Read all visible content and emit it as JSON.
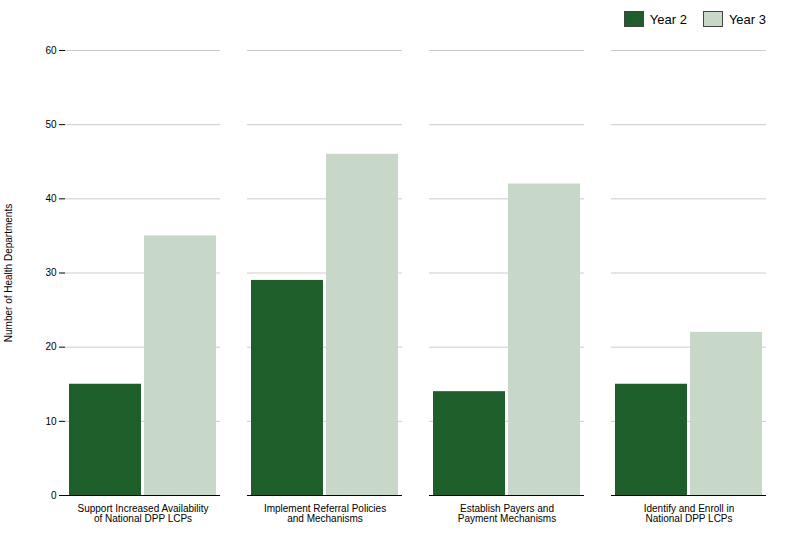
{
  "chart_data": {
    "type": "bar",
    "categories": [
      "Support Increased Availability\nof National DPP LCPs",
      "Implement Referral Policies\nand Mechanisms",
      "Establish Payers and\nPayment Mechanisms",
      "Identify and Enroll in\nNational DPP LCPs"
    ],
    "series": [
      {
        "name": "Year 2",
        "color": "#1e5e2a",
        "values": [
          15,
          29,
          14,
          15
        ]
      },
      {
        "name": "Year 3",
        "color": "#c8d8c8",
        "values": [
          35,
          46,
          42,
          22
        ]
      }
    ],
    "ylabel": "Number of Health Departments",
    "ylim": [
      0,
      60
    ],
    "yticks": [
      0,
      10,
      20,
      30,
      40,
      50,
      60
    ],
    "grid": true,
    "legend": "upper right"
  }
}
